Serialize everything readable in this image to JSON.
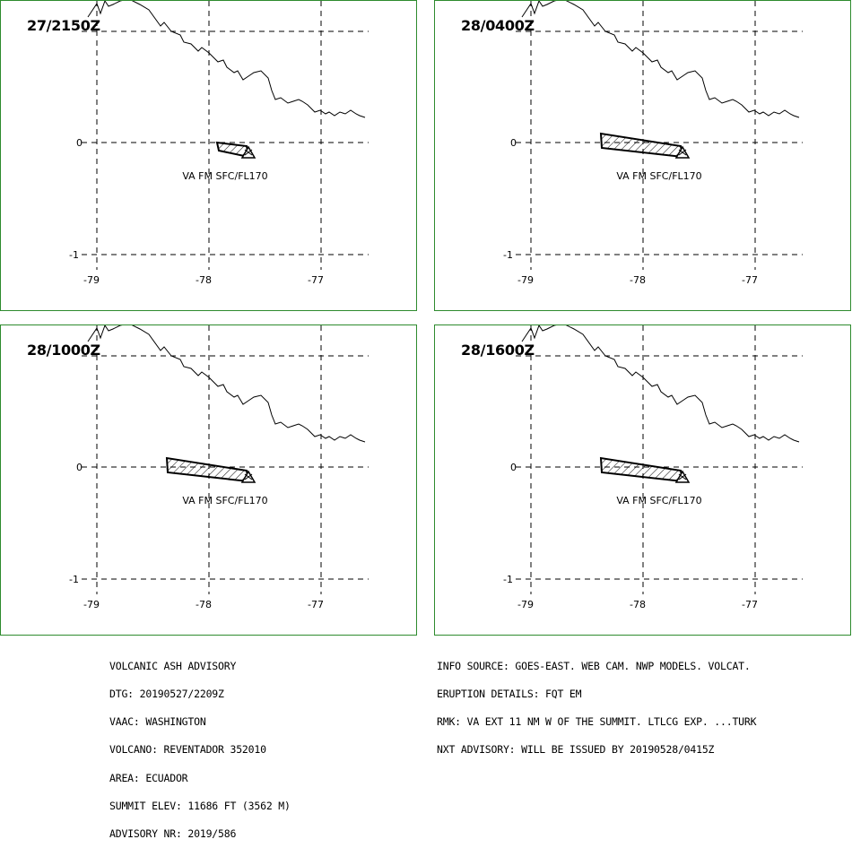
{
  "panels": [
    {
      "time": "27/2150Z",
      "label": "VA FM SFC/FL170",
      "plume": "small"
    },
    {
      "time": "28/0400Z",
      "label": "VA FM SFC/FL170",
      "plume": "long"
    },
    {
      "time": "28/1000Z",
      "label": "VA FM SFC/FL170",
      "plume": "long"
    },
    {
      "time": "28/1600Z",
      "label": "VA FM SFC/FL170",
      "plume": "long"
    }
  ],
  "axes": {
    "lon_labels": [
      "-79",
      "-78",
      "-77"
    ],
    "lat_labels": [
      "0",
      "-1"
    ]
  },
  "advisory_left": [
    "VOLCANIC ASH ADVISORY",
    "DTG: 20190527/2209Z",
    "VAAC: WASHINGTON",
    "VOLCANO: REVENTADOR 352010",
    "AREA: ECUADOR",
    "SUMMIT ELEV: 11686 FT (3562 M)",
    "ADVISORY NR: 2019/586"
  ],
  "advisory_right": [
    "INFO SOURCE: GOES-EAST. WEB CAM. NWP MODELS. VOLCAT.",
    "ERUPTION DETAILS: FQT EM",
    "RMK: VA EXT 11 NM W OF THE SUMMIT. LTLCG EXP. ...TURK",
    "NXT ADVISORY: WILL BE ISSUED BY 20190528/0415Z"
  ],
  "colors": {
    "border": "#2e8b2e",
    "line": "#000000"
  }
}
